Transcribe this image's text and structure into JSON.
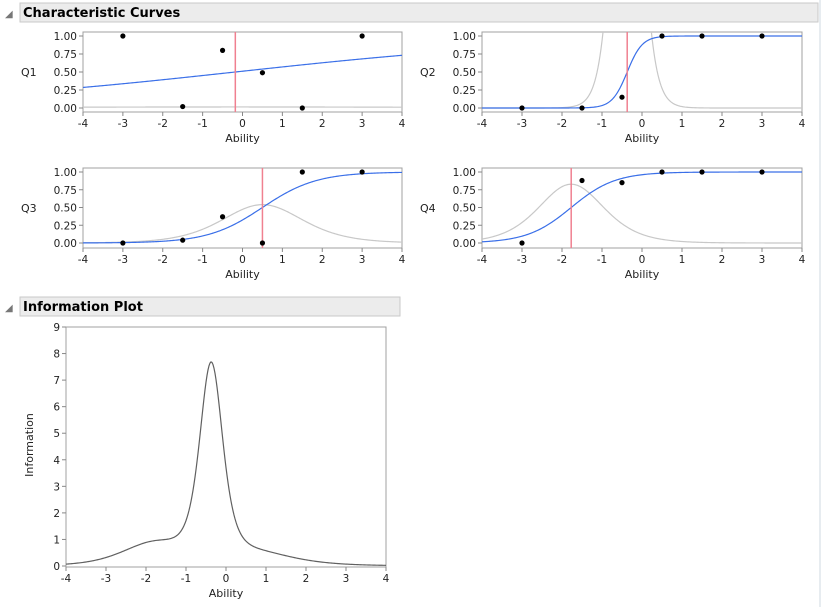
{
  "sections": {
    "characteristic_curves": "Characteristic Curves",
    "information_plot": "Information Plot"
  },
  "colors": {
    "curve": "#3a6fe8",
    "info_curve": "#c8c8c8",
    "difficulty_line": "#f08090",
    "points": "#000000",
    "total_info": "#606060",
    "header_bg": "#ececec"
  },
  "chart_data": [
    {
      "type": "line",
      "ylabel": "Q1",
      "xlabel": "Ability",
      "xlim": [
        -4,
        4
      ],
      "ylim": [
        0,
        1
      ],
      "xticks": [
        "-4",
        "-3",
        "-2",
        "-1",
        "0",
        "1",
        "2",
        "3",
        "4"
      ],
      "yticks": [
        "0.00",
        "0.25",
        "0.50",
        "0.75",
        "1.00"
      ],
      "item_params": {
        "discrimination": 0.24,
        "difficulty": -0.18
      },
      "points": {
        "x": [
          -3,
          -1.5,
          -0.5,
          0.5,
          1.5,
          3
        ],
        "y": [
          1,
          0.02,
          0.8,
          0.49,
          0,
          1
        ]
      }
    },
    {
      "type": "line",
      "ylabel": "Q2",
      "xlabel": "Ability",
      "xlim": [
        -4,
        4
      ],
      "ylim": [
        0,
        1
      ],
      "xticks": [
        "-4",
        "-3",
        "-2",
        "-1",
        "0",
        "1",
        "2",
        "3",
        "4"
      ],
      "yticks": [
        "0.00",
        "0.25",
        "0.50",
        "0.75",
        "1.00"
      ],
      "item_params": {
        "discrimination": 5.3,
        "difficulty": -0.37
      },
      "points": {
        "x": [
          -3,
          -1.5,
          -0.5,
          0.5,
          1.5,
          3
        ],
        "y": [
          0,
          0,
          0.15,
          1,
          1,
          1
        ]
      }
    },
    {
      "type": "line",
      "ylabel": "Q3",
      "xlabel": "Ability",
      "xlim": [
        -4,
        4
      ],
      "ylim": [
        0,
        1
      ],
      "xticks": [
        "-4",
        "-3",
        "-2",
        "-1",
        "0",
        "1",
        "2",
        "3",
        "4"
      ],
      "yticks": [
        "0.00",
        "0.25",
        "0.50",
        "0.75",
        "1.00"
      ],
      "item_params": {
        "discrimination": 1.47,
        "difficulty": 0.5
      },
      "points": {
        "x": [
          -3,
          -1.5,
          -0.5,
          0.5,
          1.5,
          3
        ],
        "y": [
          0,
          0.04,
          0.37,
          0,
          1,
          1
        ]
      }
    },
    {
      "type": "line",
      "ylabel": "Q4",
      "xlabel": "Ability",
      "xlim": [
        -4,
        4
      ],
      "ylim": [
        0,
        1
      ],
      "xticks": [
        "-4",
        "-3",
        "-2",
        "-1",
        "0",
        "1",
        "2",
        "3",
        "4"
      ],
      "yticks": [
        "0.00",
        "0.25",
        "0.50",
        "0.75",
        "1.00"
      ],
      "item_params": {
        "discrimination": 1.82,
        "difficulty": -1.77
      },
      "points": {
        "x": [
          -3,
          -1.5,
          -0.5,
          0.5,
          1.5,
          3
        ],
        "y": [
          0,
          0.88,
          0.85,
          1,
          1,
          1
        ]
      }
    },
    {
      "type": "line",
      "ylabel": "Information",
      "xlabel": "Ability",
      "xlim": [
        -4,
        4
      ],
      "ylim": [
        0,
        9
      ],
      "xticks": [
        "-4",
        "-3",
        "-2",
        "-1",
        "0",
        "1",
        "2",
        "3",
        "4"
      ],
      "yticks": [
        "0",
        "1",
        "2",
        "3",
        "4",
        "5",
        "6",
        "7",
        "8",
        "9"
      ],
      "series": [
        {
          "x": [
            -4,
            -3,
            -2,
            -1.5,
            -1,
            -0.7,
            -0.4,
            -0.1,
            0.2,
            0.5,
            1,
            2,
            3,
            4
          ],
          "y": [
            0.08,
            0.3,
            0.87,
            0.95,
            1.6,
            4.2,
            7.7,
            4.3,
            1.2,
            0.6,
            0.45,
            0.25,
            0.1,
            0.04
          ]
        }
      ]
    }
  ]
}
